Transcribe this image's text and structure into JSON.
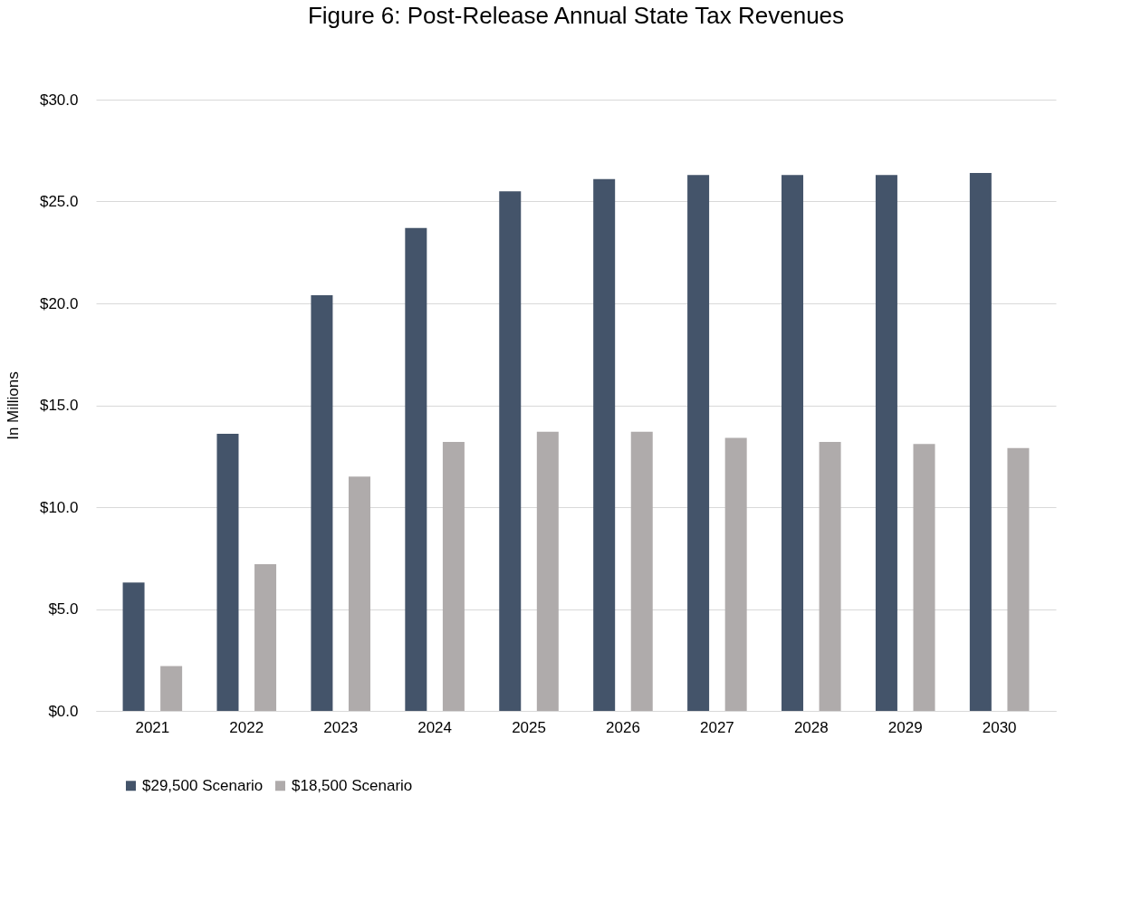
{
  "chart_data": {
    "type": "bar",
    "title": "Figure 6: Post-Release Annual State Tax Revenues",
    "ylabel": "In Millions",
    "categories": [
      "2021",
      "2022",
      "2023",
      "2024",
      "2025",
      "2026",
      "2027",
      "2028",
      "2029",
      "2030"
    ],
    "series": [
      {
        "name": "$29,500 Scenario",
        "color": "#44546a",
        "values": [
          6.3,
          13.6,
          20.4,
          23.7,
          25.5,
          26.1,
          26.3,
          26.3,
          26.3,
          26.4
        ]
      },
      {
        "name": "$18,500 Scenario",
        "color": "#afabab",
        "values": [
          2.2,
          7.2,
          11.5,
          13.2,
          13.7,
          13.7,
          13.4,
          13.2,
          13.1,
          12.9
        ]
      }
    ],
    "ylim": [
      0,
      30
    ],
    "yticks": [
      {
        "value": 0,
        "label": "$0.0"
      },
      {
        "value": 5,
        "label": "$5.0"
      },
      {
        "value": 10,
        "label": "$10.0"
      },
      {
        "value": 15,
        "label": "$15.0"
      },
      {
        "value": 20,
        "label": "$20.0"
      },
      {
        "value": 25,
        "label": "$25.0"
      },
      {
        "value": 30,
        "label": "$30.0"
      }
    ],
    "grid": "y",
    "legend": "bottom"
  }
}
